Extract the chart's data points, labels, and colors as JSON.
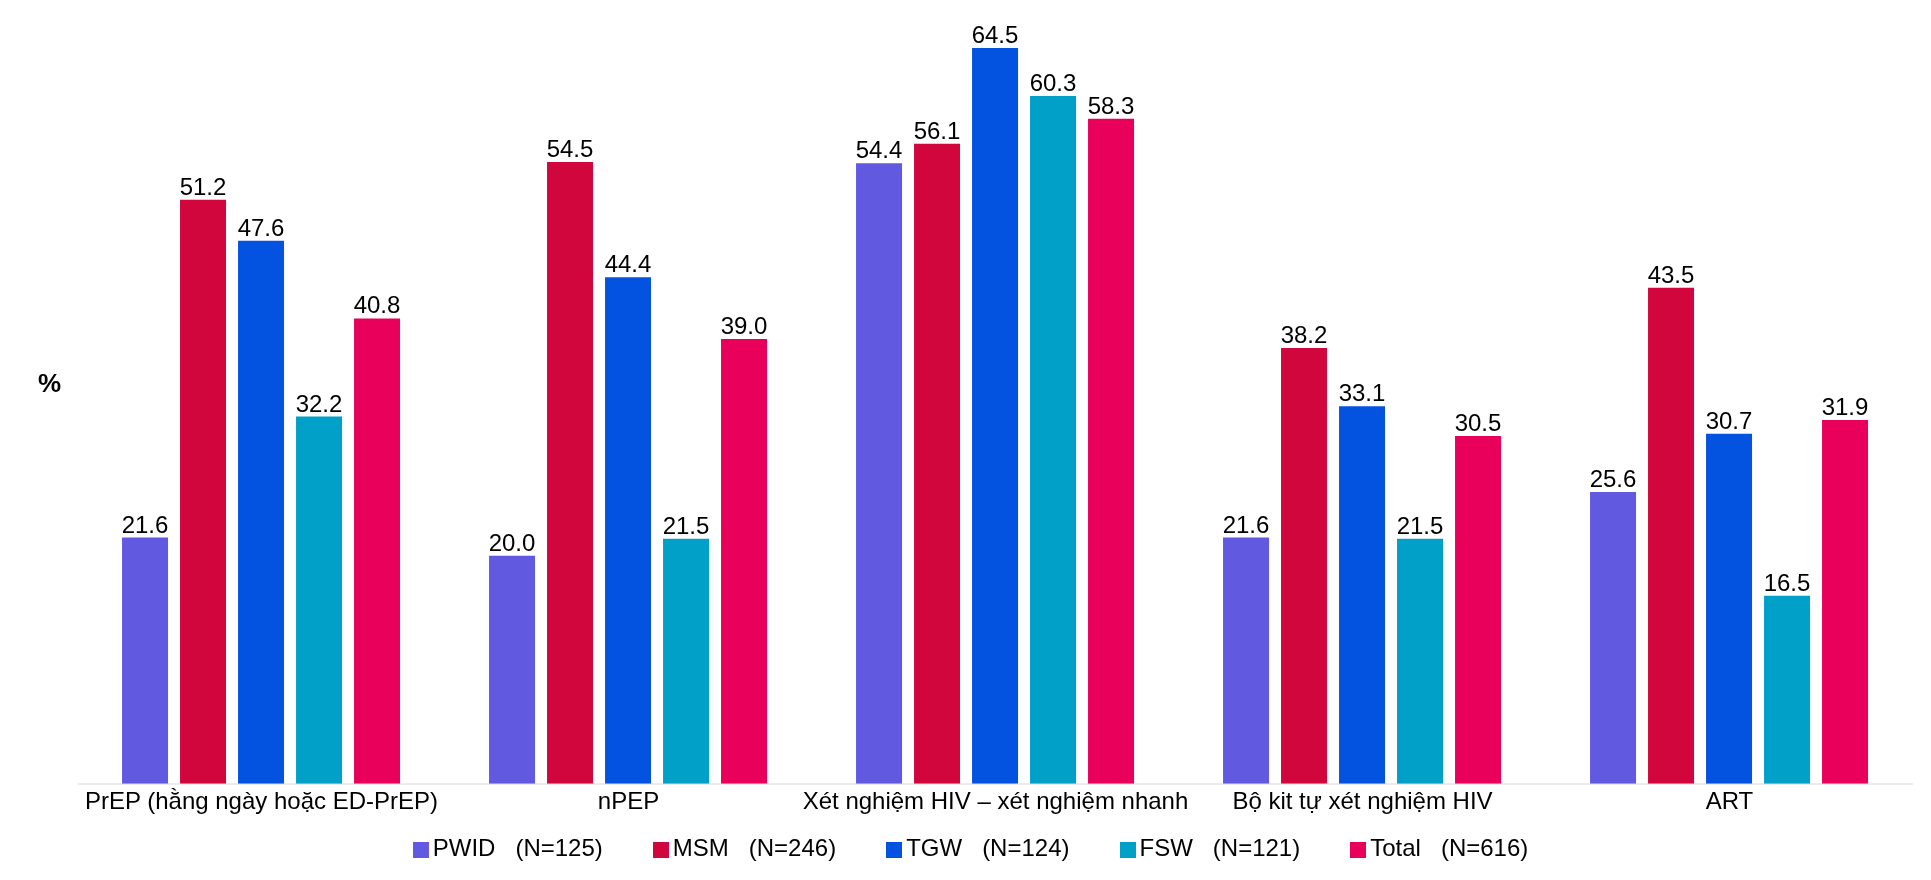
{
  "chart_data": {
    "type": "bar",
    "ylabel": "%",
    "categories": [
      "PrEP (hằng ngày hoặc ED-PrEP)",
      "nPEP",
      "Xét nghiệm HIV – xét nghiệm nhanh",
      "Bộ kit tự xét nghiệm HIV",
      "ART"
    ],
    "series": [
      {
        "name": "PWID   (N=125)",
        "color": "#6159e0",
        "values": [
          21.6,
          20.0,
          54.4,
          21.6,
          25.6
        ],
        "value_labels": [
          "21.6",
          "20.0",
          "54.4",
          "21.6",
          "25.6"
        ]
      },
      {
        "name": "MSM   (N=246)",
        "color": "#d0063c",
        "values": [
          51.2,
          54.5,
          56.1,
          38.2,
          43.5
        ],
        "value_labels": [
          "51.2",
          "54.5",
          "56.1",
          "38.2",
          "43.5"
        ]
      },
      {
        "name": "TGW   (N=124)",
        "color": "#0452e0",
        "values": [
          47.6,
          44.4,
          64.5,
          33.1,
          30.7
        ],
        "value_labels": [
          "47.6",
          "44.4",
          "64.5",
          "33.1",
          "30.7"
        ]
      },
      {
        "name": "FSW   (N=121)",
        "color": "#00a0c8",
        "values": [
          32.2,
          21.5,
          60.3,
          21.5,
          16.5
        ],
        "value_labels": [
          "32.2",
          "21.5",
          "60.3",
          "21.5",
          "16.5"
        ]
      },
      {
        "name": "Total   (N=616)",
        "color": "#e8005a",
        "values": [
          40.8,
          39.0,
          58.3,
          30.5,
          31.9
        ],
        "value_labels": [
          "40.8",
          "39.0",
          "58.3",
          "30.5",
          "31.9"
        ]
      }
    ],
    "legend": "bottom"
  }
}
